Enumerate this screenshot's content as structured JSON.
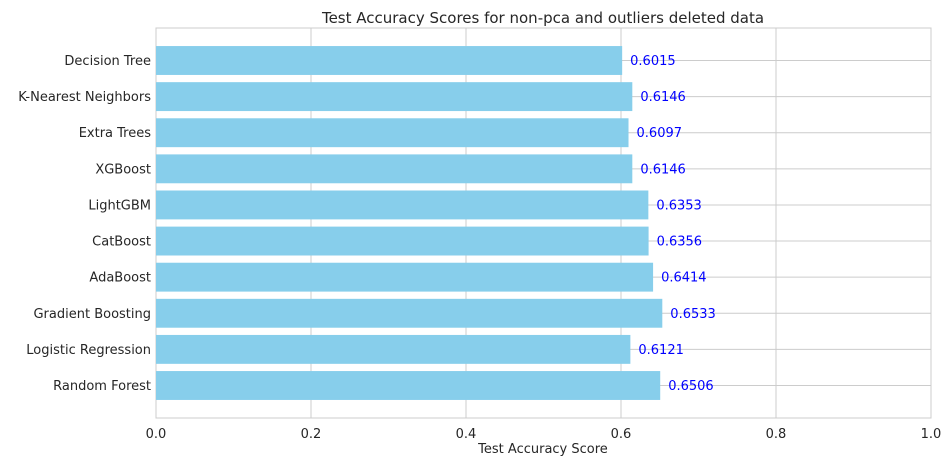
{
  "chart_data": {
    "type": "bar",
    "orientation": "horizontal",
    "title": "Test Accuracy Scores for non-pca and outliers deleted data",
    "xlabel": "Test Accuracy Score",
    "ylabel": "",
    "xlim": [
      0,
      1
    ],
    "xticks": [
      {
        "value": 0,
        "label": "0.0"
      },
      {
        "value": 0.2,
        "label": "0.2"
      },
      {
        "value": 0.4,
        "label": "0.4"
      },
      {
        "value": 0.6,
        "label": "0.6"
      },
      {
        "value": 0.8,
        "label": "0.8"
      },
      {
        "value": 1,
        "label": "1.0"
      }
    ],
    "categories": [
      "Decision Tree",
      "K-Nearest Neighbors",
      "Extra Trees",
      "XGBoost",
      "LightGBM",
      "CatBoost",
      "AdaBoost",
      "Gradient Boosting",
      "Logistic Regression",
      "Random Forest"
    ],
    "values": [
      0.6015,
      0.6146,
      0.6097,
      0.6146,
      0.6353,
      0.6356,
      0.6414,
      0.6533,
      0.6121,
      0.6506
    ],
    "data_labels": [
      "0.6015",
      "0.6146",
      "0.6097",
      "0.6146",
      "0.6353",
      "0.6356",
      "0.6414",
      "0.6533",
      "0.6121",
      "0.6506"
    ],
    "grid": true,
    "legend": "none",
    "colors": {
      "bar": "#87ceeb",
      "data_label": "#0000ff",
      "grid": "#cccccc",
      "axes_edge": "#cccccc",
      "text": "#262626",
      "background": "#ffffff"
    }
  }
}
